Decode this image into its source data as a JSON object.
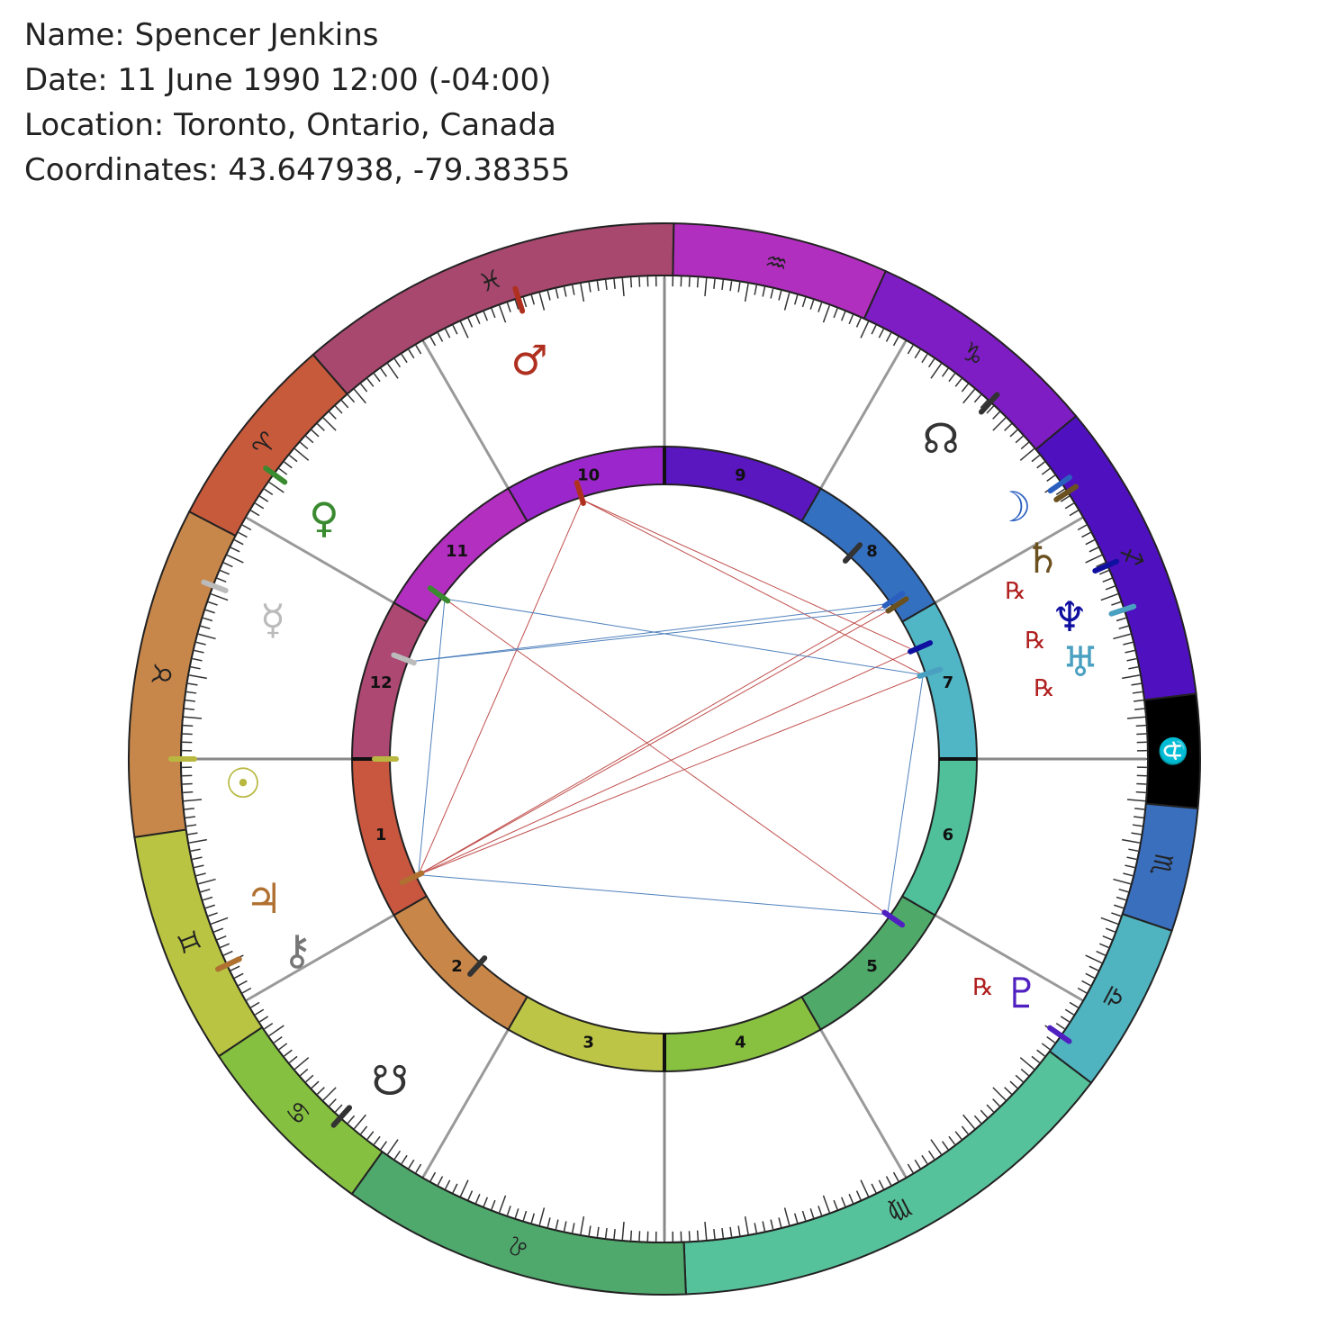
{
  "header": {
    "name": "Name: Spencer Jenkins",
    "date": "Date: 11 June 1990 12:00 (-04:00)",
    "location": "Location: Toronto, Ontario, Canada",
    "coordinates": "Coordinates: 43.647938, -79.38355"
  },
  "signs": [
    "♓",
    "♒",
    "♑",
    "♐",
    "⛎",
    "♏",
    "♎",
    "♍",
    "♌",
    "♋",
    "♊",
    "♉",
    "♈"
  ],
  "houses": [
    1,
    2,
    3,
    4,
    5,
    6,
    7,
    8,
    9,
    10,
    11,
    12
  ],
  "planets": [
    "♂",
    "☊",
    "☽",
    "♄",
    "♆",
    "♅",
    "♇",
    "⚷",
    "♃",
    "☋",
    "☉",
    "☿",
    "♀"
  ],
  "retrograde": [
    "℞",
    "℞",
    "℞",
    "℞"
  ]
}
